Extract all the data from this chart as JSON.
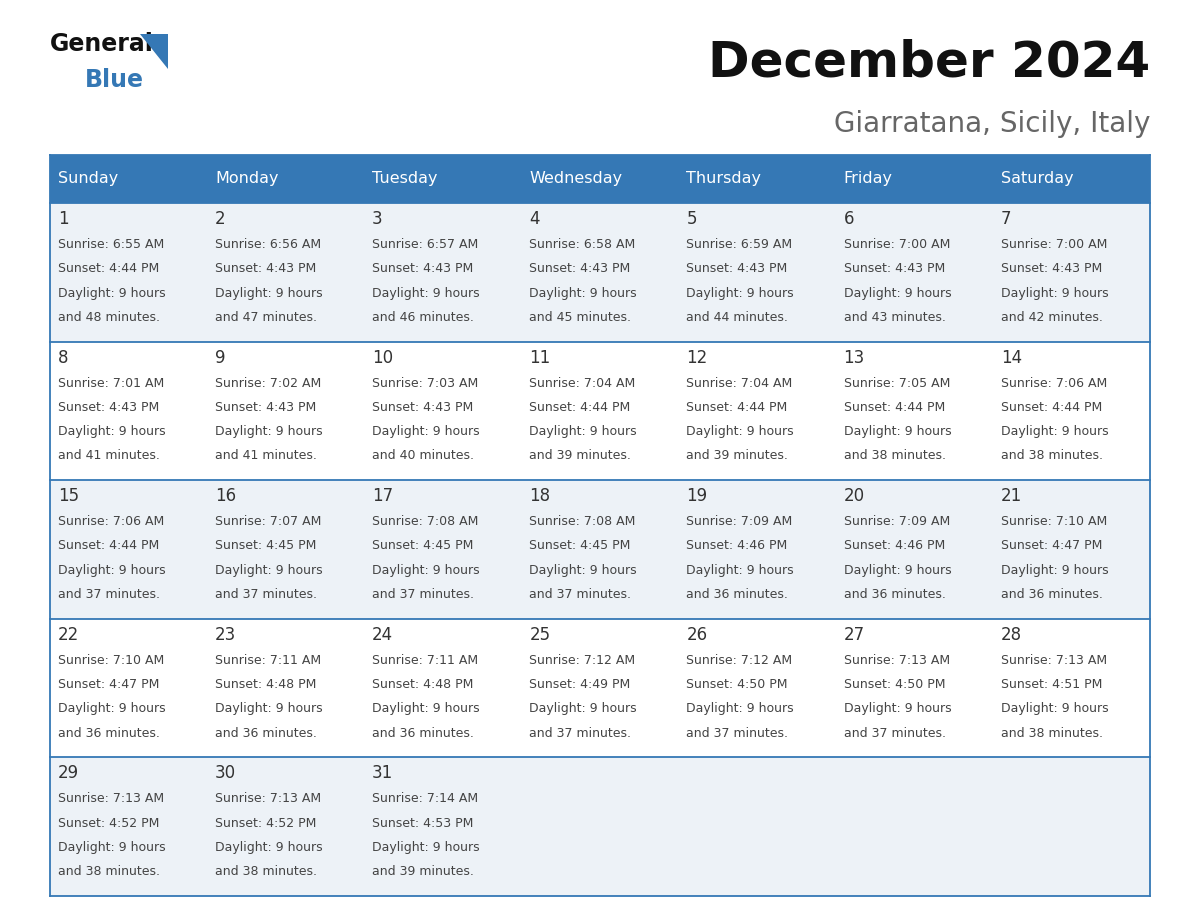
{
  "title": "December 2024",
  "subtitle": "Giarratana, Sicily, Italy",
  "header_bg_color": "#3578b5",
  "header_text_color": "#ffffff",
  "day_headers": [
    "Sunday",
    "Monday",
    "Tuesday",
    "Wednesday",
    "Thursday",
    "Friday",
    "Saturday"
  ],
  "row_bg_even": "#edf2f7",
  "row_bg_odd": "#ffffff",
  "cell_border_color": "#3578b5",
  "date_text_color": "#333333",
  "info_text_color": "#444444",
  "calendar": [
    [
      {
        "day": 1,
        "sunrise": "6:55 AM",
        "sunset": "4:44 PM",
        "daylight_h": "9 hours",
        "daylight_m": "and 48 minutes."
      },
      {
        "day": 2,
        "sunrise": "6:56 AM",
        "sunset": "4:43 PM",
        "daylight_h": "9 hours",
        "daylight_m": "and 47 minutes."
      },
      {
        "day": 3,
        "sunrise": "6:57 AM",
        "sunset": "4:43 PM",
        "daylight_h": "9 hours",
        "daylight_m": "and 46 minutes."
      },
      {
        "day": 4,
        "sunrise": "6:58 AM",
        "sunset": "4:43 PM",
        "daylight_h": "9 hours",
        "daylight_m": "and 45 minutes."
      },
      {
        "day": 5,
        "sunrise": "6:59 AM",
        "sunset": "4:43 PM",
        "daylight_h": "9 hours",
        "daylight_m": "and 44 minutes."
      },
      {
        "day": 6,
        "sunrise": "7:00 AM",
        "sunset": "4:43 PM",
        "daylight_h": "9 hours",
        "daylight_m": "and 43 minutes."
      },
      {
        "day": 7,
        "sunrise": "7:00 AM",
        "sunset": "4:43 PM",
        "daylight_h": "9 hours",
        "daylight_m": "and 42 minutes."
      }
    ],
    [
      {
        "day": 8,
        "sunrise": "7:01 AM",
        "sunset": "4:43 PM",
        "daylight_h": "9 hours",
        "daylight_m": "and 41 minutes."
      },
      {
        "day": 9,
        "sunrise": "7:02 AM",
        "sunset": "4:43 PM",
        "daylight_h": "9 hours",
        "daylight_m": "and 41 minutes."
      },
      {
        "day": 10,
        "sunrise": "7:03 AM",
        "sunset": "4:43 PM",
        "daylight_h": "9 hours",
        "daylight_m": "and 40 minutes."
      },
      {
        "day": 11,
        "sunrise": "7:04 AM",
        "sunset": "4:44 PM",
        "daylight_h": "9 hours",
        "daylight_m": "and 39 minutes."
      },
      {
        "day": 12,
        "sunrise": "7:04 AM",
        "sunset": "4:44 PM",
        "daylight_h": "9 hours",
        "daylight_m": "and 39 minutes."
      },
      {
        "day": 13,
        "sunrise": "7:05 AM",
        "sunset": "4:44 PM",
        "daylight_h": "9 hours",
        "daylight_m": "and 38 minutes."
      },
      {
        "day": 14,
        "sunrise": "7:06 AM",
        "sunset": "4:44 PM",
        "daylight_h": "9 hours",
        "daylight_m": "and 38 minutes."
      }
    ],
    [
      {
        "day": 15,
        "sunrise": "7:06 AM",
        "sunset": "4:44 PM",
        "daylight_h": "9 hours",
        "daylight_m": "and 37 minutes."
      },
      {
        "day": 16,
        "sunrise": "7:07 AM",
        "sunset": "4:45 PM",
        "daylight_h": "9 hours",
        "daylight_m": "and 37 minutes."
      },
      {
        "day": 17,
        "sunrise": "7:08 AM",
        "sunset": "4:45 PM",
        "daylight_h": "9 hours",
        "daylight_m": "and 37 minutes."
      },
      {
        "day": 18,
        "sunrise": "7:08 AM",
        "sunset": "4:45 PM",
        "daylight_h": "9 hours",
        "daylight_m": "and 37 minutes."
      },
      {
        "day": 19,
        "sunrise": "7:09 AM",
        "sunset": "4:46 PM",
        "daylight_h": "9 hours",
        "daylight_m": "and 36 minutes."
      },
      {
        "day": 20,
        "sunrise": "7:09 AM",
        "sunset": "4:46 PM",
        "daylight_h": "9 hours",
        "daylight_m": "and 36 minutes."
      },
      {
        "day": 21,
        "sunrise": "7:10 AM",
        "sunset": "4:47 PM",
        "daylight_h": "9 hours",
        "daylight_m": "and 36 minutes."
      }
    ],
    [
      {
        "day": 22,
        "sunrise": "7:10 AM",
        "sunset": "4:47 PM",
        "daylight_h": "9 hours",
        "daylight_m": "and 36 minutes."
      },
      {
        "day": 23,
        "sunrise": "7:11 AM",
        "sunset": "4:48 PM",
        "daylight_h": "9 hours",
        "daylight_m": "and 36 minutes."
      },
      {
        "day": 24,
        "sunrise": "7:11 AM",
        "sunset": "4:48 PM",
        "daylight_h": "9 hours",
        "daylight_m": "and 36 minutes."
      },
      {
        "day": 25,
        "sunrise": "7:12 AM",
        "sunset": "4:49 PM",
        "daylight_h": "9 hours",
        "daylight_m": "and 37 minutes."
      },
      {
        "day": 26,
        "sunrise": "7:12 AM",
        "sunset": "4:50 PM",
        "daylight_h": "9 hours",
        "daylight_m": "and 37 minutes."
      },
      {
        "day": 27,
        "sunrise": "7:13 AM",
        "sunset": "4:50 PM",
        "daylight_h": "9 hours",
        "daylight_m": "and 37 minutes."
      },
      {
        "day": 28,
        "sunrise": "7:13 AM",
        "sunset": "4:51 PM",
        "daylight_h": "9 hours",
        "daylight_m": "and 38 minutes."
      }
    ],
    [
      {
        "day": 29,
        "sunrise": "7:13 AM",
        "sunset": "4:52 PM",
        "daylight_h": "9 hours",
        "daylight_m": "and 38 minutes."
      },
      {
        "day": 30,
        "sunrise": "7:13 AM",
        "sunset": "4:52 PM",
        "daylight_h": "9 hours",
        "daylight_m": "and 38 minutes."
      },
      {
        "day": 31,
        "sunrise": "7:14 AM",
        "sunset": "4:53 PM",
        "daylight_h": "9 hours",
        "daylight_m": "and 39 minutes."
      },
      null,
      null,
      null,
      null
    ]
  ],
  "logo_color1": "#111111",
  "logo_color2": "#3578b5",
  "bg_color": "#ffffff",
  "title_fontsize": 36,
  "subtitle_fontsize": 20,
  "header_fontsize": 11.5,
  "day_num_fontsize": 12,
  "info_fontsize": 9.0
}
